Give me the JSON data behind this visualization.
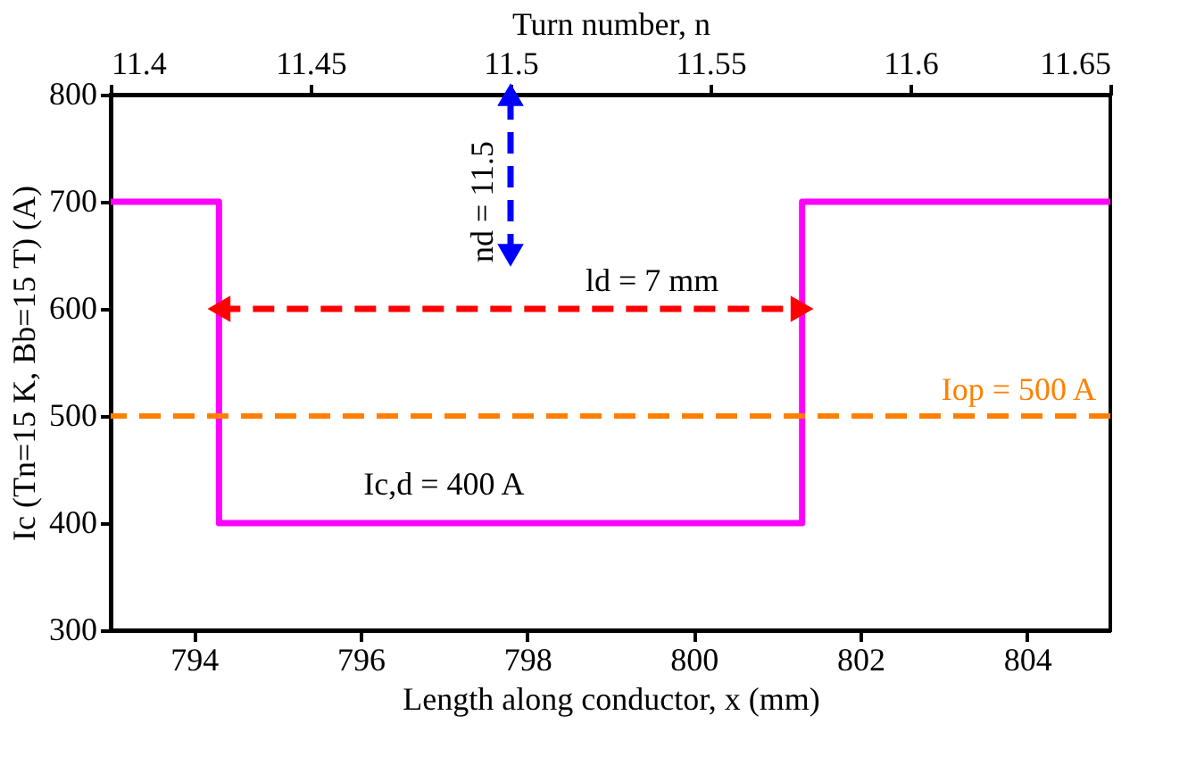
{
  "chart_data": {
    "type": "step",
    "xlabel": "Length along conductor, x (mm)",
    "ylabel": "Ic (Tn=15 K, Bb=15 T) (A)",
    "x2label": "Turn number, n",
    "xlim": [
      793,
      805
    ],
    "xticks": [
      794,
      796,
      798,
      800,
      802,
      804
    ],
    "ylim": [
      300,
      800
    ],
    "yticks": [
      300,
      400,
      500,
      600,
      700,
      800
    ],
    "x2lim": [
      11.4,
      11.65
    ],
    "x2ticks": [
      11.4,
      11.45,
      11.5,
      11.55,
      11.6,
      11.65
    ],
    "series": [
      {
        "color": "#ff00ff",
        "line_style": "solid",
        "x": [
          793,
          794.3,
          801.3,
          805
        ],
        "values": [
          700,
          400,
          700,
          700
        ]
      },
      {
        "type": "line",
        "color": "#ff0000",
        "line_style": "dashed",
        "marker": "triangle",
        "x": [
          794.3,
          801.3
        ],
        "values": [
          600,
          600
        ]
      },
      {
        "type": "line",
        "color": "#0000ff",
        "line_style": "dashed",
        "marker": "triangle",
        "x": [
          797.8,
          797.8
        ],
        "values": [
          650,
          800
        ]
      }
    ],
    "ref_lines": [
      {
        "axis": "y",
        "value": 500,
        "label": "Iop = 500 A",
        "color": "#ff8000",
        "line_style": "dashed"
      }
    ],
    "annotations": [
      {
        "text": "ld = 7 mm",
        "x": 799.5,
        "y": 600
      },
      {
        "text": "Ic,d = 400 A",
        "x": 797,
        "y": 410
      },
      {
        "text": "nd = 11.5",
        "x": 797.8,
        "y": 700
      }
    ],
    "grid": false
  }
}
